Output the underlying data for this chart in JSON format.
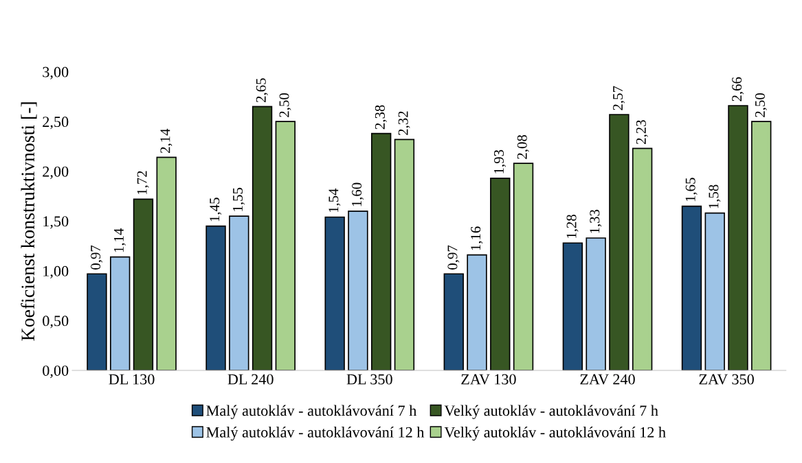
{
  "chart_data": {
    "type": "bar",
    "ylabel": "Koeficienst konstruktivnosti [-]",
    "categories": [
      "DL 130",
      "DL 240",
      "DL 350",
      "ZAV 130",
      "ZAV 240",
      "ZAV 350"
    ],
    "series": [
      {
        "name": "Malý autokláv - autoklávování 7 h",
        "color": "#1f4e79",
        "values": [
          0.97,
          1.45,
          1.54,
          0.97,
          1.28,
          1.65
        ],
        "value_labels": [
          "0,97",
          "1,45",
          "1,54",
          "0,97",
          "1,28",
          "1,65"
        ]
      },
      {
        "name": "Malý autokláv - autoklávování 12 h",
        "color": "#9dc3e6",
        "values": [
          1.14,
          1.55,
          1.6,
          1.16,
          1.33,
          1.58
        ],
        "value_labels": [
          "1,14",
          "1,55",
          "1,60",
          "1,16",
          "1,33",
          "1,58"
        ]
      },
      {
        "name": "Velký autokláv - autoklávování 7 h",
        "color": "#375623",
        "values": [
          1.72,
          2.65,
          2.38,
          1.93,
          2.57,
          2.66
        ],
        "value_labels": [
          "1,72",
          "2,65",
          "2,38",
          "1,93",
          "2,57",
          "2,66"
        ]
      },
      {
        "name": "Velký autokláv - autoklávování 12 h",
        "color": "#a9d18e",
        "values": [
          2.14,
          2.5,
          2.32,
          2.08,
          2.23,
          2.5
        ],
        "value_labels": [
          "2,14",
          "2,50",
          "2,32",
          "2,08",
          "2,23",
          "2,50"
        ]
      }
    ],
    "ylim": [
      0,
      3
    ],
    "yticks": [
      {
        "value": 0,
        "label": "0,00"
      },
      {
        "value": 0.5,
        "label": "0,50"
      },
      {
        "value": 1,
        "label": "1,00"
      },
      {
        "value": 1.5,
        "label": "1,50"
      },
      {
        "value": 2,
        "label": "2,00"
      },
      {
        "value": 2.5,
        "label": "2,50"
      },
      {
        "value": 3,
        "label": "3,00"
      }
    ],
    "grid": false,
    "legend": "bottom"
  }
}
